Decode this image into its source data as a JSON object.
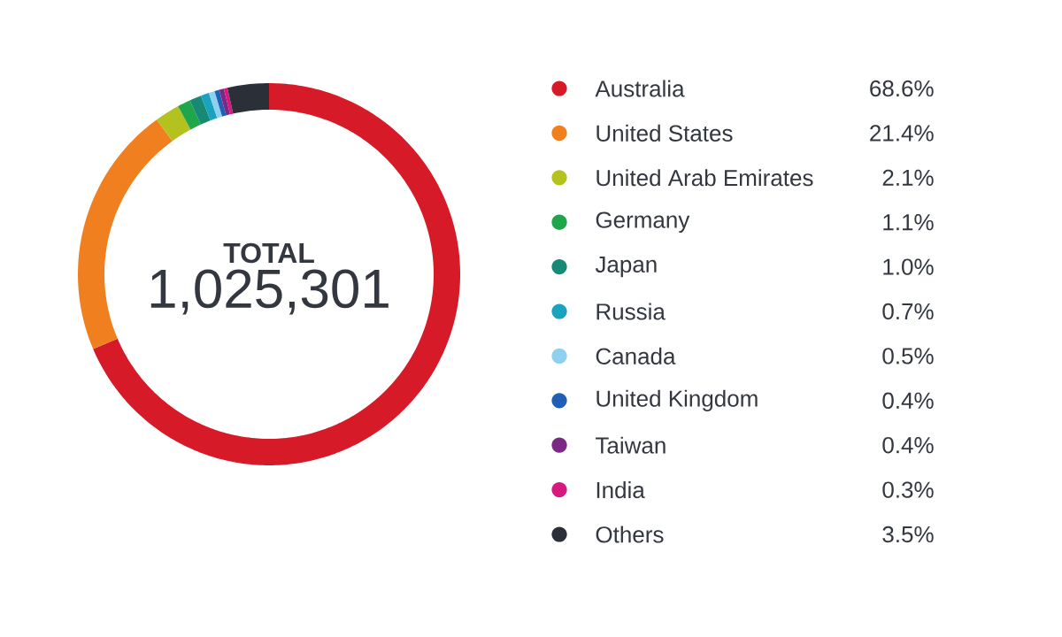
{
  "chart_data": {
    "type": "donut",
    "categories": [
      "Australia",
      "United States",
      "United Arab Emirates",
      "Germany",
      "Japan",
      "Russia",
      "Canada",
      "United Kingdom",
      "Taiwan",
      "India",
      "Others"
    ],
    "values": [
      68.6,
      21.4,
      2.1,
      1.1,
      1.0,
      0.7,
      0.5,
      0.4,
      0.4,
      0.3,
      3.5
    ],
    "value_labels": [
      "68.6%",
      "21.4%",
      "2.1%",
      "1.1%",
      "1.0%",
      "0.7%",
      "0.5%",
      "0.4%",
      "0.4%",
      "0.3%",
      "3.5%"
    ],
    "colors": [
      "#d71a28",
      "#f07f1f",
      "#b3c21f",
      "#1fa64a",
      "#168a75",
      "#1aa3bf",
      "#8fd0ee",
      "#1f5fb5",
      "#7a2a85",
      "#d6197f",
      "#2b2f38"
    ],
    "annotations": [
      "TOTAL",
      "1,025,301"
    ],
    "legend": "right"
  }
}
